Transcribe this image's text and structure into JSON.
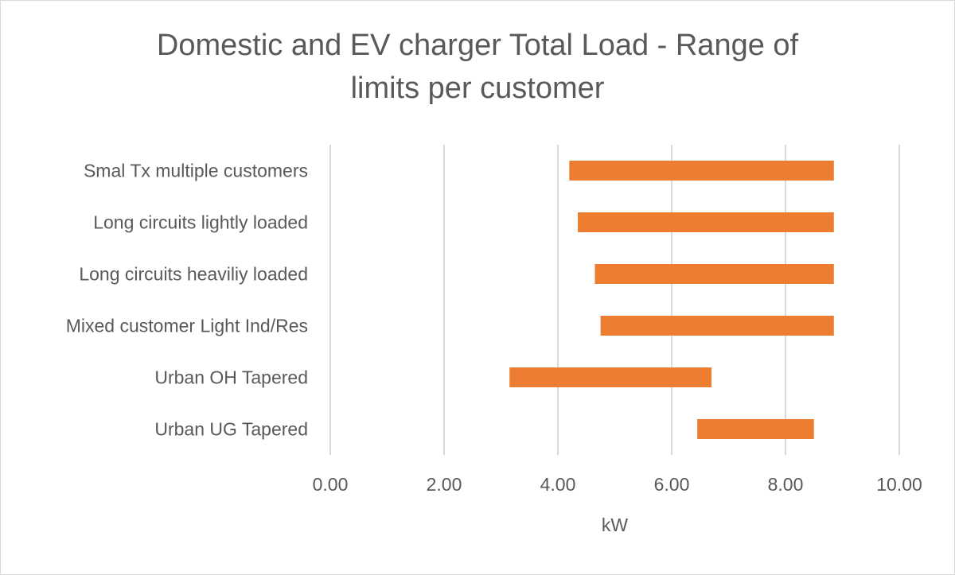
{
  "chart_data": {
    "type": "bar",
    "orientation": "horizontal",
    "stacked_floating": true,
    "title_lines": [
      "Domestic and EV charger Total Load - Range of",
      "limits per customer"
    ],
    "xlabel": "kW",
    "ylabel": "",
    "xlim": [
      0,
      10
    ],
    "x_ticks": [
      0,
      2,
      4,
      6,
      8,
      10
    ],
    "x_tick_labels": [
      "0.00",
      "2.00",
      "4.00",
      "6.00",
      "8.00",
      "10.00"
    ],
    "grid": "vertical",
    "legend": "none",
    "bar_color": "#ED7D31",
    "gridline_color": "#D9D9D9",
    "categories": [
      "Smal Tx multiple customers",
      "Long circuits lightly loaded",
      "Long circuits heaviliy loaded",
      "Mixed customer Light Ind/Res",
      "Urban OH Tapered",
      "Urban UG Tapered"
    ],
    "ranges": [
      {
        "min": 4.2,
        "max": 8.85
      },
      {
        "min": 4.35,
        "max": 8.85
      },
      {
        "min": 4.65,
        "max": 8.85
      },
      {
        "min": 4.75,
        "max": 8.85
      },
      {
        "min": 3.15,
        "max": 6.7
      },
      {
        "min": 6.45,
        "max": 8.5
      }
    ]
  }
}
